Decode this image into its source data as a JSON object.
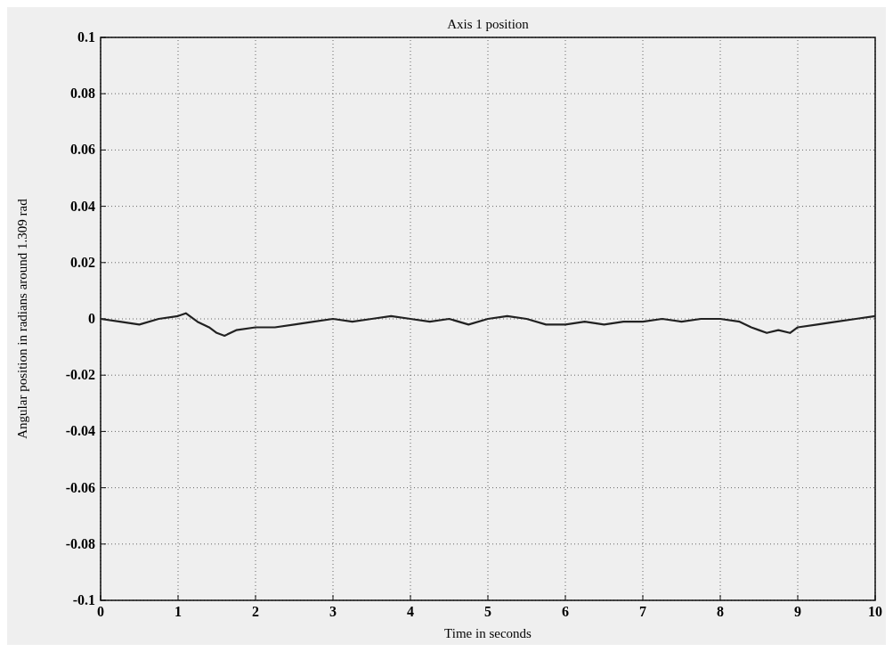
{
  "chart_data": {
    "type": "line",
    "title": "Axis 1 position",
    "xlabel": "Time in seconds",
    "ylabel": "Angular position in radians around 1.309 rad",
    "x": [
      0,
      0.25,
      0.5,
      0.75,
      1.0,
      1.1,
      1.25,
      1.4,
      1.5,
      1.6,
      1.75,
      2.0,
      2.25,
      2.5,
      2.75,
      3.0,
      3.25,
      3.5,
      3.75,
      4.0,
      4.25,
      4.5,
      4.75,
      5.0,
      5.25,
      5.5,
      5.75,
      6.0,
      6.25,
      6.5,
      6.75,
      7.0,
      7.25,
      7.5,
      7.75,
      8.0,
      8.25,
      8.4,
      8.5,
      8.6,
      8.75,
      8.9,
      9.0,
      9.25,
      9.5,
      9.75,
      10
    ],
    "series": [
      {
        "color": "#222222",
        "values": [
          0,
          -0.001,
          -0.002,
          0,
          0.001,
          0.002,
          -0.001,
          -0.003,
          -0.005,
          -0.006,
          -0.004,
          -0.003,
          -0.003,
          -0.002,
          -0.001,
          0,
          -0.001,
          0,
          0.001,
          0,
          -0.001,
          0,
          -0.002,
          0,
          0.001,
          0,
          -0.002,
          -0.002,
          -0.001,
          -0.002,
          -0.001,
          -0.001,
          0,
          -0.001,
          0,
          0,
          -0.001,
          -0.003,
          -0.004,
          -0.005,
          -0.004,
          -0.005,
          -0.003,
          -0.002,
          -0.001,
          0,
          0.001
        ]
      }
    ],
    "xlim": [
      0,
      10
    ],
    "xticks": [
      0,
      1,
      2,
      3,
      4,
      5,
      6,
      7,
      8,
      9,
      10
    ],
    "ylim": [
      -0.1,
      0.1
    ],
    "yticks": [
      -0.1,
      -0.08,
      -0.06,
      -0.04,
      -0.02,
      0,
      0.02,
      0.04,
      0.06,
      0.08,
      0.1
    ],
    "grid": true,
    "line_style": "solid",
    "marker": "none"
  }
}
